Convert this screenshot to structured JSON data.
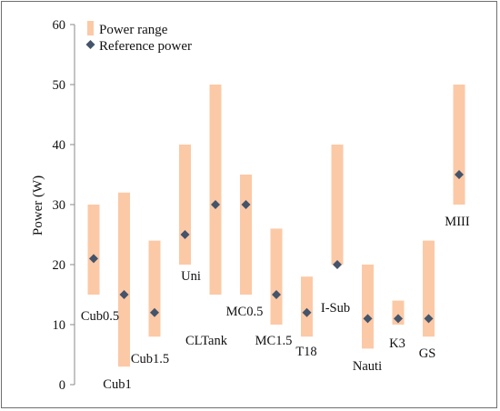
{
  "chart_data": {
    "type": "range-bar",
    "title": "",
    "ylabel": "Power (W)",
    "ylim": [
      0,
      60
    ],
    "yticks": [
      0,
      10,
      20,
      30,
      40,
      50,
      60
    ],
    "legend": {
      "placement": "top-left",
      "entries": [
        "Power range",
        "Reference power"
      ]
    },
    "series": [
      {
        "name": "Power range",
        "type": "range"
      },
      {
        "name": "Reference power",
        "type": "marker"
      }
    ],
    "categories": [
      "Cub0.5",
      "Cub1",
      "Cub1.5",
      "Uni",
      "CLTank",
      "MC0.5",
      "MC1.5",
      "T18",
      "I-Sub",
      "Nauti",
      "K3",
      "GS",
      "MIII"
    ],
    "range_low": [
      15,
      3,
      8,
      20,
      15,
      15,
      10,
      8,
      20,
      6,
      10,
      8,
      30
    ],
    "range_high": [
      30,
      32,
      24,
      40,
      50,
      35,
      26,
      18,
      40,
      20,
      14,
      24,
      50
    ],
    "reference": [
      21,
      15,
      12,
      25,
      30,
      30,
      15,
      12,
      20,
      11,
      11,
      11,
      35
    ],
    "colors": {
      "range": "#fcc9a6",
      "marker": "#44546a"
    }
  }
}
